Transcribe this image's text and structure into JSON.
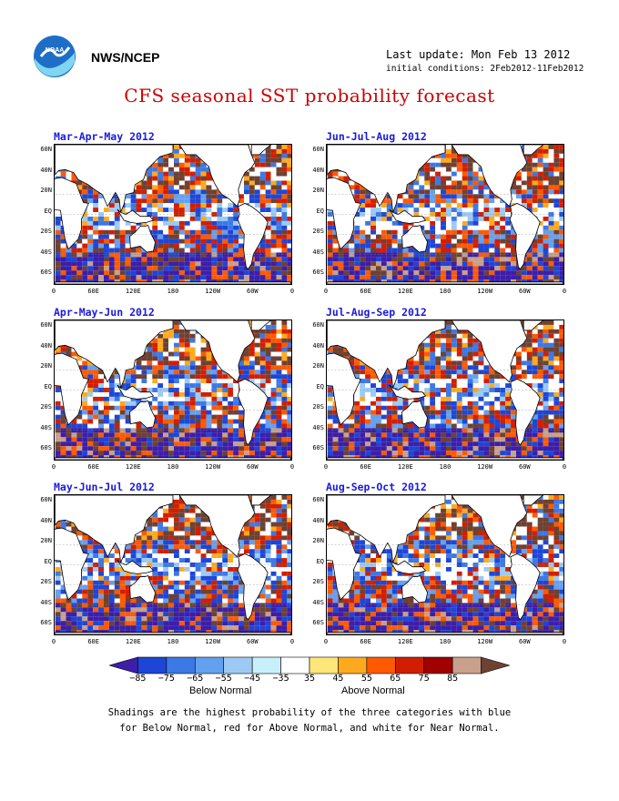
{
  "header": {
    "org": "NWS/NCEP",
    "last_update": "Last update: Mon Feb 13 2012",
    "initial_conditions": "initial conditions: 2Feb2012-11Feb2012",
    "title": "CFS seasonal SST probability forecast"
  },
  "panels": [
    {
      "title": "Mar-Apr-May 2012"
    },
    {
      "title": "Jun-Jul-Aug 2012"
    },
    {
      "title": "Apr-May-Jun 2012"
    },
    {
      "title": "Jul-Aug-Sep 2012"
    },
    {
      "title": "May-Jun-Jul 2012"
    },
    {
      "title": "Aug-Sep-Oct 2012"
    }
  ],
  "axes": {
    "lat_labels": [
      "60N",
      "40N",
      "20N",
      "EQ",
      "20S",
      "40S",
      "60S"
    ],
    "lon_labels": [
      "0",
      "60E",
      "120E",
      "180",
      "120W",
      "60W",
      "0"
    ]
  },
  "colorbar": {
    "labels": [
      "−85",
      "−75",
      "−65",
      "−55",
      "−45",
      "−35",
      "35",
      "45",
      "55",
      "65",
      "75",
      "85"
    ],
    "colors": [
      "#3c1ea8",
      "#1e46d6",
      "#3c78e6",
      "#64a0f0",
      "#9ccaf5",
      "#c8f0fa",
      "#ffffff",
      "#ffe678",
      "#ffaa1e",
      "#ff5a00",
      "#d21e00",
      "#a00000",
      "#c8a08c",
      "#6e4132"
    ],
    "below_label": "Below Normal",
    "above_label": "Above Normal"
  },
  "note_lines": [
    "Shadings are the highest probability of the three categories with blue",
    "for Below Normal, red for Above Normal, and white for Near Normal."
  ]
}
